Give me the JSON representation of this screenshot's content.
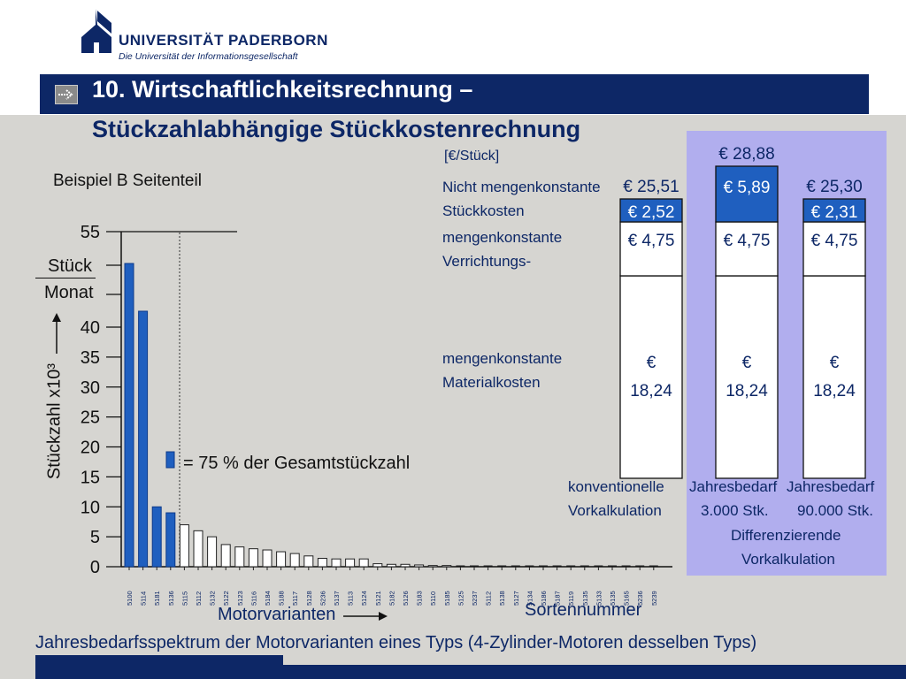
{
  "header": {
    "university": "UNIVERSITÄT PADERBORN",
    "subtitle": "Die Universität der Informationsgesellschaft",
    "title_line1": "10. Wirtschaftlichkeitsrechnung –",
    "title_line2": "Stückzahlabhängige Stückkostenrechnung"
  },
  "left": {
    "example": "Beispiel B Seitenteil",
    "unit_top": "Stück",
    "unit_bottom": "Monat",
    "ylabel": "Stückzahl x10³",
    "legend_text": "= 75 % der Gesamtstückzahl",
    "xlabel": "Motorvarianten",
    "sorten": "Sortennummer",
    "caption": "Jahresbedarfsspektrum der Motorvarianten eines Typs (4-Zylinder-Motoren desselben Typs)"
  },
  "right": {
    "unit": "[€/Stück]",
    "label_nmk1": "Nicht mengenkonstante",
    "label_nmk2": "Stückkosten",
    "label_mkv1": "mengenkonstante",
    "label_mkv2": "Verrichtungs-",
    "label_mkm1": "mengenkonstante",
    "label_mkm2": "Materialkosten",
    "col1_caption1": "konventionelle",
    "col1_caption2": "Vorkalkulation",
    "col2_caption1": "Jahresbedarf",
    "col2_caption2": "3.000 Stk.",
    "col3_caption1": "Jahresbedarf",
    "col3_caption2": "90.000 Stk.",
    "diff1": "Differenzierende",
    "diff2": "Vorkalkulation"
  },
  "colors": {
    "navy": "#0d2766",
    "blue": "#1f5fbf",
    "purple": "#b1aeee"
  },
  "chart_data": [
    {
      "type": "bar",
      "xlabel": "Motorvarianten",
      "ylabel": "Stückzahl x10³",
      "ylim": [
        0,
        55
      ],
      "yticks": [
        0,
        5,
        10,
        15,
        20,
        25,
        30,
        35,
        40,
        55
      ],
      "categories": [
        "5100",
        "5114",
        "5181",
        "5136",
        "5115",
        "5112",
        "5132",
        "5122",
        "5123",
        "5116",
        "5184",
        "5188",
        "5117",
        "5128",
        "5236",
        "5137",
        "5113",
        "5124",
        "5121",
        "5182",
        "5126",
        "5183",
        "5110",
        "5185",
        "5125",
        "5237",
        "5112",
        "5138",
        "5127",
        "5134",
        "5186",
        "5187",
        "5119",
        "5135",
        "5133",
        "5135",
        "5165",
        "5236",
        "5239"
      ],
      "values": [
        50,
        42.5,
        10,
        9,
        7,
        6,
        5,
        3.7,
        3.3,
        3,
        2.8,
        2.5,
        2.2,
        1.8,
        1.4,
        1.3,
        1.3,
        1.3,
        0.5,
        0.4,
        0.4,
        0.3,
        0.2,
        0.2,
        0,
        0,
        0,
        0,
        0,
        0,
        0,
        0,
        0,
        0,
        0,
        0,
        0,
        0,
        0
      ],
      "highlighted_count": 4,
      "legend": "= 75 % der Gesamtstückzahl"
    },
    {
      "type": "bar",
      "stacked": true,
      "categories": [
        "konventionelle Vorkalkulation",
        "Jahresbedarf 3.000 Stk.",
        "Jahresbedarf 90.000 Stk."
      ],
      "totals": [
        "€ 25,51",
        "€ 28,88",
        "€ 25,30"
      ],
      "series": [
        {
          "name": "mengenkonstante Materialkosten",
          "values": [
            18.24,
            18.24,
            18.24
          ],
          "labels": [
            "€ 18,24",
            "€ 18,24",
            "€ 18,24"
          ]
        },
        {
          "name": "mengenkonstante Verrichtungs-",
          "values": [
            4.75,
            4.75,
            4.75
          ],
          "labels": [
            "€ 4,75",
            "€ 4,75",
            "€ 4,75"
          ]
        },
        {
          "name": "Nicht mengenkonstante Stückkosten",
          "values": [
            2.52,
            5.89,
            2.31
          ],
          "labels": [
            "€ 2,52",
            "€ 5,89",
            "€ 2,31"
          ]
        }
      ]
    }
  ]
}
